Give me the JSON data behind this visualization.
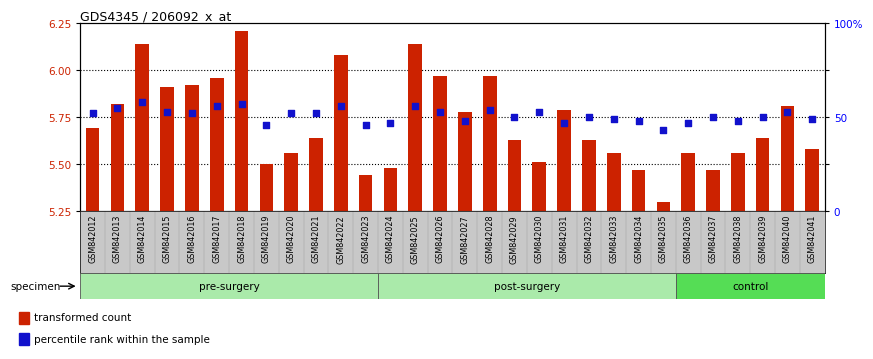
{
  "title": "GDS4345 / 206092_x_at",
  "categories": [
    "GSM842012",
    "GSM842013",
    "GSM842014",
    "GSM842015",
    "GSM842016",
    "GSM842017",
    "GSM842018",
    "GSM842019",
    "GSM842020",
    "GSM842021",
    "GSM842022",
    "GSM842023",
    "GSM842024",
    "GSM842025",
    "GSM842026",
    "GSM842027",
    "GSM842028",
    "GSM842029",
    "GSM842030",
    "GSM842031",
    "GSM842032",
    "GSM842033",
    "GSM842034",
    "GSM842035",
    "GSM842036",
    "GSM842037",
    "GSM842038",
    "GSM842039",
    "GSM842040",
    "GSM842041"
  ],
  "red_values": [
    5.69,
    5.82,
    6.14,
    5.91,
    5.92,
    5.96,
    6.21,
    5.5,
    5.56,
    5.64,
    6.08,
    5.44,
    5.48,
    6.14,
    5.97,
    5.78,
    5.97,
    5.63,
    5.51,
    5.79,
    5.63,
    5.56,
    5.47,
    5.3,
    5.56,
    5.47,
    5.56,
    5.64,
    5.81,
    5.58
  ],
  "blue_values": [
    52,
    55,
    58,
    53,
    52,
    56,
    57,
    46,
    52,
    52,
    56,
    46,
    47,
    56,
    53,
    48,
    54,
    50,
    53,
    47,
    50,
    49,
    48,
    43,
    47,
    50,
    48,
    50,
    53,
    49
  ],
  "ylim_left": [
    5.25,
    6.25
  ],
  "ylim_right": [
    0,
    100
  ],
  "yticks_left": [
    5.25,
    5.5,
    5.75,
    6.0,
    6.25
  ],
  "yticks_right": [
    0,
    25,
    50,
    75,
    100
  ],
  "ytick_labels_right": [
    "0",
    "25",
    "50",
    "75",
    "100%"
  ],
  "hlines": [
    5.5,
    5.75,
    6.0
  ],
  "bar_color": "#CC2200",
  "dot_color": "#1111CC",
  "baseline": 5.25,
  "bar_width": 0.55,
  "pre_surgery_color": "#AAEAAA",
  "post_surgery_color": "#AAEAAA",
  "control_color": "#55DD55",
  "tick_bg_color": "#C8C8C8",
  "group_border_color": "#888888"
}
